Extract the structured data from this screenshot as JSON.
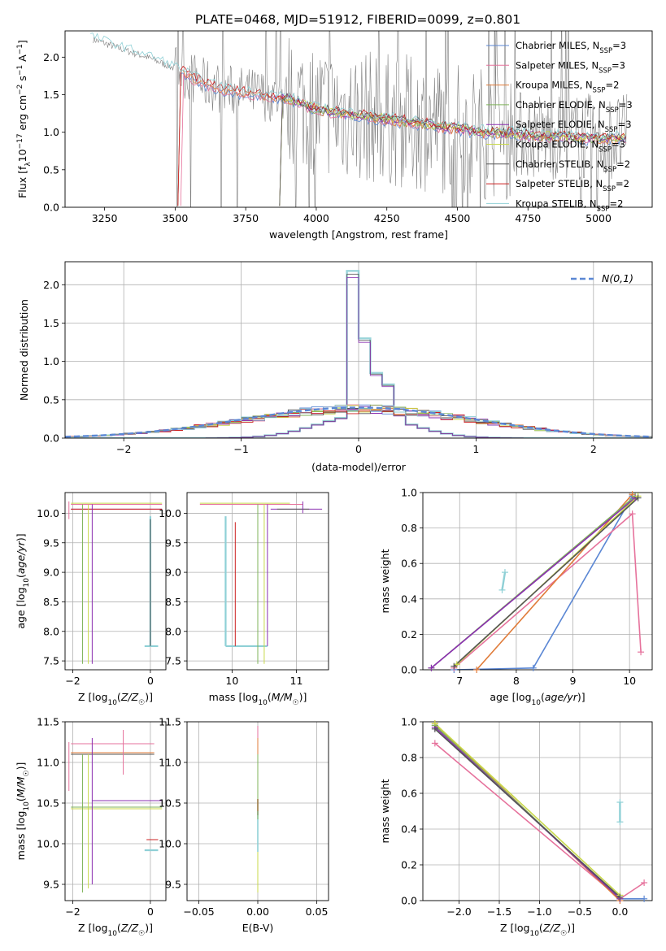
{
  "figure_title": "PLATE=0468, MJD=51912, FIBERID=0099, z=0.801",
  "colors": {
    "chabrier_miles": "#5b87d4",
    "salpeter_miles": "#e6729c",
    "kroupa_miles": "#e07b39",
    "chabrier_elodie": "#7fb35a",
    "salpeter_elodie": "#8a2fb0",
    "kroupa_elodie": "#c8d94a",
    "chabrier_stelib": "#555555",
    "salpeter_stelib": "#cc2020",
    "kroupa_stelib": "#8fd0d6",
    "gaussian": "#5b87d4",
    "spectrum": "#808080"
  },
  "chart_data": [
    {
      "type": "line",
      "panel": "spectrum",
      "xlabel": "wavelength [Angstrom, rest frame]",
      "ylabel": "Flux [fλ10⁻¹⁷ erg cm⁻² s⁻¹ A⁻¹]",
      "xlim": [
        3110,
        5190
      ],
      "ylim": [
        0,
        2.35
      ],
      "xticks": [
        "3250",
        "3500",
        "3750",
        "4000",
        "4250",
        "4500",
        "4750",
        "5000"
      ],
      "yticks": [
        "0.0",
        "0.5",
        "1.0",
        "1.5",
        "2.0"
      ],
      "grid": false,
      "legend_position": "upper-right",
      "legend": [
        {
          "name": "Chabrier MILES",
          "sub": "SSP",
          "suffix": "=3"
        },
        {
          "name": "Salpeter MILES",
          "sub": "SSP",
          "suffix": "=3"
        },
        {
          "name": "Kroupa MILES",
          "sub": "SSP",
          "suffix": "=2"
        },
        {
          "name": "Chabrier ELODIE",
          "sub": "SSP",
          "suffix": "=3"
        },
        {
          "name": "Salpeter ELODIE",
          "sub": "SSP",
          "suffix": "=3"
        },
        {
          "name": "Kroupa ELODIE",
          "sub": "SSP",
          "suffix": "=3"
        },
        {
          "name": "Chabrier STELIB",
          "sub": "SSP",
          "suffix": "=2"
        },
        {
          "name": "Salpeter STELIB",
          "sub": "SSP",
          "suffix": "=2"
        },
        {
          "name": "Kroupa STELIB",
          "sub": "SSP",
          "suffix": "=2"
        }
      ],
      "continuum": {
        "x": [
          3200,
          3300,
          3400,
          3500,
          3600,
          3700,
          3800,
          3900,
          4000,
          4100,
          4200,
          4300,
          4400,
          4500,
          4600,
          4700,
          4800,
          4900,
          5000,
          5100
        ],
        "y": [
          2.25,
          2.12,
          2.0,
          1.85,
          1.65,
          1.55,
          1.5,
          1.45,
          1.3,
          1.25,
          1.2,
          1.15,
          1.1,
          1.05,
          1.0,
          0.98,
          0.95,
          0.93,
          0.92,
          0.92
        ]
      },
      "spectrum_range": [
        3210,
        5100
      ],
      "model_starts": [
        3520,
        3530,
        3520,
        3880,
        3880,
        3880,
        3880,
        3520,
        3200
      ]
    },
    {
      "type": "histogram",
      "panel": "residuals",
      "xlabel": "(data-model)/error",
      "ylabel": "Normed distribution",
      "xlim": [
        -2.5,
        2.5
      ],
      "ylim": [
        0,
        2.3
      ],
      "xticks": [
        -2,
        -1,
        0,
        1,
        2
      ],
      "yticks": [
        "0.0",
        "0.5",
        "1.0",
        "1.5",
        "2.0"
      ],
      "grid": true,
      "legend_position": "upper-right",
      "legend": "N(0,1)",
      "bin_width": 0.1,
      "narrow_peak": {
        "bins": [
          -0.1,
          0.0,
          0.1,
          0.2
        ],
        "values": [
          2.18,
          1.3,
          0.85,
          0.7
        ],
        "outer": 0.3
      },
      "gaussian_sigma": 1.0
    },
    {
      "type": "errorbar",
      "panel": "age-vs-metallicity",
      "xlabel": "Z [log10(Z/Z☉)]",
      "ylabel": "age  [log10(age/yr)]",
      "xlim": [
        -2.2,
        0.4
      ],
      "ylim": [
        7.35,
        10.35
      ],
      "xticks": [
        "-2",
        "0"
      ],
      "xtick_values": [
        -2,
        0
      ],
      "yticks": [
        "7.5",
        "8.0",
        "8.5",
        "9.0",
        "9.5",
        "10.0"
      ],
      "ytick_values": [
        7.5,
        8.0,
        8.5,
        9.0,
        9.5,
        10.0
      ],
      "grid": true
    },
    {
      "type": "errorbar",
      "panel": "age-vs-mass",
      "xlabel": "mass [log10(M/M☉)]",
      "xlim": [
        9.3,
        11.5
      ],
      "ylim": [
        7.35,
        10.35
      ],
      "xticks": [
        "10",
        "11"
      ],
      "xtick_values": [
        10,
        11
      ],
      "yticks": [
        "7.5",
        "8.0",
        "8.5",
        "9.0",
        "9.5",
        "10.0"
      ],
      "ytick_values": [
        7.5,
        8.0,
        8.5,
        9.0,
        9.5,
        10.0
      ],
      "grid": true
    },
    {
      "type": "line",
      "panel": "weight-vs-age",
      "xlabel": "age  [log10(age/yr)]",
      "ylabel": "mass weight",
      "xlim": [
        6.35,
        10.4
      ],
      "ylim": [
        0,
        1.0
      ],
      "xticks": [
        "7",
        "8",
        "9",
        "10"
      ],
      "xtick_values": [
        7,
        8,
        9,
        10
      ],
      "yticks": [
        "0.0",
        "0.2",
        "0.4",
        "0.6",
        "0.8",
        "1.0"
      ],
      "ytick_values": [
        0,
        0.2,
        0.4,
        0.6,
        0.8,
        1.0
      ],
      "grid": true,
      "series": [
        {
          "name": "Chabrier MILES",
          "x": [
            6.9,
            8.3,
            10.05
          ],
          "y": [
            0.0,
            0.01,
            0.98
          ]
        },
        {
          "name": "Salpeter MILES",
          "x": [
            6.9,
            10.05,
            10.2
          ],
          "y": [
            0.01,
            0.88,
            0.1
          ]
        },
        {
          "name": "Kroupa MILES",
          "x": [
            7.3,
            10.05
          ],
          "y": [
            0.0,
            0.99
          ]
        },
        {
          "name": "Chabrier ELODIE",
          "x": [
            6.5,
            10.1
          ],
          "y": [
            0.01,
            0.98
          ]
        },
        {
          "name": "Salpeter ELODIE",
          "x": [
            6.5,
            10.1
          ],
          "y": [
            0.01,
            0.97
          ]
        },
        {
          "name": "Kroupa ELODIE",
          "x": [
            6.95,
            10.15
          ],
          "y": [
            0.03,
            0.98
          ]
        },
        {
          "name": "Chabrier STELIB",
          "x": [
            6.9,
            10.15
          ],
          "y": [
            0.02,
            0.97
          ]
        },
        {
          "name": "Kroupa STELIB",
          "x": [
            7.75,
            7.8
          ],
          "y": [
            0.45,
            0.55
          ]
        }
      ]
    },
    {
      "type": "errorbar",
      "panel": "mass-vs-metallicity",
      "xlabel": "Z [log10(Z/Z☉)]",
      "ylabel": "mass [log10(M/M☉)]",
      "xlim": [
        -2.2,
        0.4
      ],
      "ylim": [
        9.3,
        11.5
      ],
      "xticks": [
        "-2",
        "0"
      ],
      "xtick_values": [
        -2,
        0
      ],
      "yticks": [
        "9.5",
        "10.0",
        "10.5",
        "11.0",
        "11.5"
      ],
      "ytick_values": [
        9.5,
        10.0,
        10.5,
        11.0,
        11.5
      ],
      "grid": true
    },
    {
      "type": "errorbar",
      "panel": "mass-vs-extinction",
      "xlabel": "E(B-V)",
      "xlim": [
        -0.06,
        0.06
      ],
      "ylim": [
        9.3,
        11.5
      ],
      "xticks": [
        "-0.05",
        "0.00",
        "0.05"
      ],
      "xtick_values": [
        -0.05,
        0.0,
        0.05
      ],
      "yticks": [
        "9.5",
        "10.0",
        "10.5",
        "11.0",
        "11.5"
      ],
      "ytick_values": [
        9.5,
        10.0,
        10.5,
        11.0,
        11.5
      ],
      "grid": true
    },
    {
      "type": "line",
      "panel": "weight-vs-metallicity",
      "xlabel": "Z [log10(Z/Z☉)]",
      "ylabel": "mass weight",
      "xlim": [
        -2.45,
        0.4
      ],
      "ylim": [
        0,
        1.0
      ],
      "xticks": [
        "-2.0",
        "-1.5",
        "-1.0",
        "-0.5",
        "0.0"
      ],
      "xtick_values": [
        -2.0,
        -1.5,
        -1.0,
        -0.5,
        0.0
      ],
      "yticks": [
        "0.0",
        "0.2",
        "0.4",
        "0.6",
        "0.8",
        "1.0"
      ],
      "ytick_values": [
        0,
        0.2,
        0.4,
        0.6,
        0.8,
        1.0
      ],
      "grid": true,
      "series": [
        {
          "name": "Chabrier MILES",
          "x": [
            -2.3,
            0.0,
            0.3
          ],
          "y": [
            0.98,
            0.01,
            0.01
          ]
        },
        {
          "name": "Salpeter MILES",
          "x": [
            -2.3,
            0.0,
            0.3
          ],
          "y": [
            0.88,
            0.01,
            0.1
          ]
        },
        {
          "name": "Kroupa MILES",
          "x": [
            -2.3,
            0.0
          ],
          "y": [
            0.99,
            0.0
          ]
        },
        {
          "name": "Chabrier ELODIE",
          "x": [
            -2.3,
            0.0
          ],
          "y": [
            0.98,
            0.01
          ]
        },
        {
          "name": "Salpeter ELODIE",
          "x": [
            -2.3,
            0.0
          ],
          "y": [
            0.97,
            0.01
          ]
        },
        {
          "name": "Kroupa ELODIE",
          "x": [
            -2.3,
            0.0
          ],
          "y": [
            0.99,
            0.03
          ]
        },
        {
          "name": "Chabrier STELIB",
          "x": [
            -2.3,
            0.0
          ],
          "y": [
            0.96,
            0.02
          ]
        },
        {
          "name": "Kroupa STELIB",
          "x": [
            0.0,
            0.0
          ],
          "y": [
            0.44,
            0.55
          ]
        }
      ]
    }
  ]
}
